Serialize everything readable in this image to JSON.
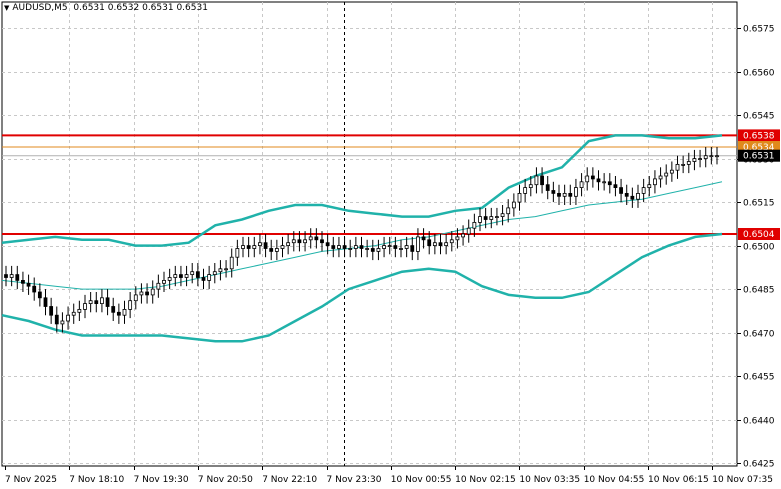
{
  "header": {
    "symbol": "AUDUSD,M5",
    "values": "0.6531 0.6532 0.6531 0.6531",
    "menu_icon": "triangle-down-icon"
  },
  "chart_data": {
    "type": "candlestick",
    "title": "",
    "xlabel": "",
    "ylabel": "",
    "ylim": [
      0.6424,
      0.6584
    ],
    "y_ticks": [
      "0.6575",
      "0.6560",
      "0.6545",
      "0.6530",
      "0.6515",
      "0.6500",
      "0.6485",
      "0.6470",
      "0.6455",
      "0.6440",
      "0.6425"
    ],
    "x_ticks": [
      "7 Nov 2025",
      "7 Nov 18:10",
      "7 Nov 19:30",
      "7 Nov 20:50",
      "7 Nov 22:10",
      "7 Nov 23:30",
      "10 Nov 00:55",
      "10 Nov 02:15",
      "10 Nov 03:35",
      "10 Nov 04:55",
      "10 Nov 06:15",
      "10 Nov 07:35"
    ],
    "grid": "on",
    "period_separator": "7 Nov 23:30",
    "horizontal_levels": [
      {
        "value": "0.6538",
        "color": "#e00000"
      },
      {
        "value": "0.6504",
        "color": "#e00000"
      },
      {
        "value": "0.6534",
        "color": "#e08a1c"
      }
    ],
    "current_price": "0.6531",
    "series": [
      {
        "kind": "ohlc",
        "close": [
          0.6489,
          0.649,
          0.6488,
          0.6487,
          0.6486,
          0.6484,
          0.6482,
          0.6479,
          0.6476,
          0.6473,
          0.6474,
          0.6476,
          0.6477,
          0.6478,
          0.648,
          0.6481,
          0.648,
          0.6482,
          0.6479,
          0.6477,
          0.6476,
          0.6478,
          0.6481,
          0.6483,
          0.6484,
          0.6483,
          0.6485,
          0.6487,
          0.6488,
          0.6489,
          0.649,
          0.6489,
          0.649,
          0.6491,
          0.6489,
          0.6488,
          0.649,
          0.6491,
          0.6492,
          0.6492,
          0.6496,
          0.6499,
          0.65,
          0.6499,
          0.65,
          0.6501,
          0.6499,
          0.6498,
          0.6499,
          0.65,
          0.6501,
          0.6502,
          0.6501,
          0.6502,
          0.6503,
          0.6502,
          0.6501,
          0.65,
          0.6499,
          0.65,
          0.6499,
          0.6499,
          0.65,
          0.6499,
          0.6499,
          0.6498,
          0.6499,
          0.65,
          0.65,
          0.6499,
          0.6499,
          0.65,
          0.6498,
          0.6503,
          0.6502,
          0.65,
          0.6501,
          0.65,
          0.6501,
          0.6502,
          0.6503,
          0.6504,
          0.6506,
          0.6508,
          0.651,
          0.6509,
          0.651,
          0.651,
          0.6511,
          0.6513,
          0.6515,
          0.6518,
          0.652,
          0.6521,
          0.6524,
          0.6521,
          0.6519,
          0.6518,
          0.6517,
          0.6518,
          0.6517,
          0.652,
          0.6522,
          0.6524,
          0.6523,
          0.6522,
          0.6522,
          0.6521,
          0.652,
          0.6518,
          0.6517,
          0.6516,
          0.6518,
          0.652,
          0.6521,
          0.6523,
          0.6524,
          0.6525,
          0.6526,
          0.6528,
          0.6528,
          0.6529,
          0.653,
          0.653,
          0.6531,
          0.6531,
          0.6531
        ]
      },
      {
        "kind": "bollinger-upper",
        "values": [
          0.6501,
          0.6502,
          0.6503,
          0.6502,
          0.6502,
          0.65,
          0.65,
          0.6501,
          0.6507,
          0.6509,
          0.6512,
          0.6514,
          0.6514,
          0.6512,
          0.6511,
          0.651,
          0.651,
          0.6512,
          0.6513,
          0.652,
          0.6524,
          0.6527,
          0.6536,
          0.6538,
          0.6538,
          0.6537,
          0.6537,
          0.6538
        ]
      },
      {
        "kind": "bollinger-middle",
        "values": [
          0.6488,
          0.6487,
          0.6486,
          0.6485,
          0.6485,
          0.6485,
          0.6486,
          0.6488,
          0.649,
          0.6492,
          0.6494,
          0.6496,
          0.6498,
          0.6499,
          0.65,
          0.6502,
          0.6503,
          0.6505,
          0.6507,
          0.6509,
          0.651,
          0.6512,
          0.6514,
          0.6515,
          0.6516,
          0.6518,
          0.652,
          0.6522
        ]
      },
      {
        "kind": "bollinger-lower",
        "values": [
          0.6476,
          0.6474,
          0.6471,
          0.6469,
          0.6469,
          0.6469,
          0.6469,
          0.6468,
          0.6467,
          0.6467,
          0.6469,
          0.6474,
          0.6479,
          0.6485,
          0.6488,
          0.6491,
          0.6492,
          0.6491,
          0.6486,
          0.6483,
          0.6482,
          0.6482,
          0.6484,
          0.649,
          0.6496,
          0.65,
          0.6503,
          0.6504
        ]
      }
    ],
    "band_color": "#20b2aa"
  }
}
